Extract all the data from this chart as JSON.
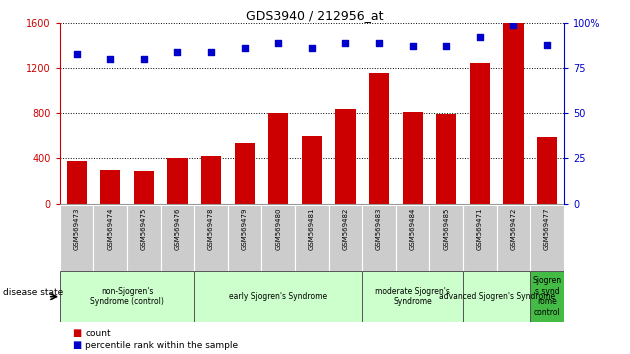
{
  "title": "GDS3940 / 212956_at",
  "samples": [
    "GSM569473",
    "GSM569474",
    "GSM569475",
    "GSM569476",
    "GSM569478",
    "GSM569479",
    "GSM569480",
    "GSM569481",
    "GSM569482",
    "GSM569483",
    "GSM569484",
    "GSM569485",
    "GSM569471",
    "GSM569472",
    "GSM569477"
  ],
  "counts": [
    380,
    300,
    290,
    400,
    420,
    540,
    800,
    600,
    840,
    1160,
    810,
    790,
    1250,
    1600,
    590
  ],
  "percentiles": [
    83,
    80,
    80,
    84,
    84,
    86,
    89,
    86,
    89,
    89,
    87,
    87,
    92,
    99,
    88
  ],
  "bar_color": "#cc0000",
  "dot_color": "#0000cc",
  "ylim_left": [
    0,
    1600
  ],
  "ylim_right": [
    0,
    100
  ],
  "yticks_left": [
    0,
    400,
    800,
    1200,
    1600
  ],
  "yticks_right": [
    0,
    25,
    50,
    75,
    100
  ],
  "groups": [
    {
      "label": "non-Sjogren's\nSyndrome (control)",
      "start": 0,
      "end": 4,
      "color": "#ccffcc"
    },
    {
      "label": "early Sjogren's Syndrome",
      "start": 4,
      "end": 9,
      "color": "#ccffcc"
    },
    {
      "label": "moderate Sjogren's\nSyndrome",
      "start": 9,
      "end": 12,
      "color": "#ccffcc"
    },
    {
      "label": "advanced Sjogren's Syndrome",
      "start": 12,
      "end": 14,
      "color": "#ccffcc"
    },
    {
      "label": "Sjogren\ns synd\nrome\ncontrol",
      "start": 14,
      "end": 15,
      "color": "#44bb44"
    }
  ],
  "legend_count_color": "#cc0000",
  "legend_pct_color": "#0000cc",
  "left_axis_color": "#cc0000",
  "right_axis_color": "#0000cc"
}
